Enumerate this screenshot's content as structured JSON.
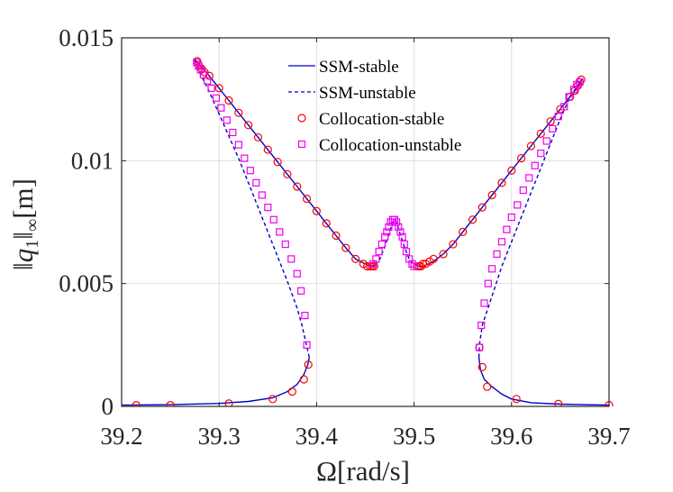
{
  "chart_data": {
    "type": "line",
    "title": "",
    "xlabel": "Ω[rad/s]",
    "ylabel": "‖q₁‖∞[m]",
    "ylabel_parts": {
      "open": "‖",
      "var": "q",
      "sub": "1",
      "close": "‖",
      "sub2": "∞",
      "unit": "[m]"
    },
    "xlim": [
      39.2,
      39.7
    ],
    "ylim": [
      0,
      0.015
    ],
    "xticks": [
      39.2,
      39.3,
      39.4,
      39.5,
      39.6,
      39.7
    ],
    "xtick_labels": [
      "39.2",
      "39.3",
      "39.4",
      "39.5",
      "39.6",
      "39.7"
    ],
    "yticks": [
      0,
      0.005,
      0.01,
      0.015
    ],
    "ytick_labels": [
      "0",
      "0.005",
      "0.01",
      "0.015"
    ],
    "grid": true,
    "legend_position": "top-center",
    "colors": {
      "stable": "#0000cc",
      "unstable": "#0000cc",
      "coll_stable": "#ff0000",
      "coll_unstable": "#ee00ee"
    },
    "series": [
      {
        "name": "SSM-stable",
        "style": "solid",
        "segments": [
          {
            "x": [
              39.2,
              39.25,
              39.3,
              39.33,
              39.355,
              39.37,
              39.38,
              39.387,
              39.391,
              39.3925
            ],
            "y": [
              5e-05,
              7e-05,
              0.00012,
              0.0002,
              0.00035,
              0.0006,
              0.0009,
              0.0013,
              0.0017,
              0.002
            ]
          },
          {
            "x": [
              39.275,
              39.28,
              39.29,
              39.3,
              39.31,
              39.32,
              39.33,
              39.34,
              39.35,
              39.36,
              39.37,
              39.38,
              39.39,
              39.4,
              39.41,
              39.42,
              39.43,
              39.44,
              39.45,
              39.456,
              39.46
            ],
            "y": [
              0.0141,
              0.0139,
              0.01345,
              0.01295,
              0.01245,
              0.01195,
              0.01145,
              0.01095,
              0.01045,
              0.00995,
              0.00945,
              0.00895,
              0.00845,
              0.00795,
              0.00745,
              0.00695,
              0.00645,
              0.006,
              0.0058,
              0.0057,
              0.00575
            ]
          },
          {
            "x": [
              39.5,
              39.505,
              39.51,
              39.52,
              39.53,
              39.54,
              39.55,
              39.56,
              39.57,
              39.58,
              39.59,
              39.6,
              39.61,
              39.62,
              39.63,
              39.64,
              39.65,
              39.66,
              39.67,
              39.672
            ],
            "y": [
              0.0058,
              0.0057,
              0.0057,
              0.0059,
              0.0062,
              0.0066,
              0.0071,
              0.0076,
              0.0081,
              0.0086,
              0.0091,
              0.0096,
              0.0101,
              0.0106,
              0.0111,
              0.0116,
              0.0121,
              0.0126,
              0.0131,
              0.0133
            ]
          },
          {
            "x": [
              39.5665,
              39.568,
              39.572,
              39.58,
              39.59,
              39.6,
              39.62,
              39.65,
              39.7
            ],
            "y": [
              0.002,
              0.0015,
              0.0011,
              0.0008,
              0.0005,
              0.0003,
              0.00015,
              9e-05,
              5e-05
            ]
          }
        ]
      },
      {
        "name": "SSM-unstable",
        "style": "dashed",
        "segments": [
          {
            "x": [
              39.3925,
              39.389,
              39.385,
              39.38,
              39.37,
              39.36,
              39.35,
              39.34,
              39.33,
              39.32,
              39.31,
              39.3,
              39.29,
              39.28,
              39.275
            ],
            "y": [
              0.002,
              0.0026,
              0.0033,
              0.004,
              0.0051,
              0.0061,
              0.0071,
              0.0081,
              0.0091,
              0.0101,
              0.011,
              0.0119,
              0.0128,
              0.0136,
              0.0141
            ]
          },
          {
            "x": [
              39.46,
              39.465,
              39.47,
              39.475,
              39.478,
              39.48,
              39.482,
              39.485,
              39.49,
              39.495,
              39.5
            ],
            "y": [
              0.00575,
              0.006,
              0.0065,
              0.0071,
              0.0075,
              0.0076,
              0.0075,
              0.0071,
              0.0065,
              0.006,
              0.0058
            ]
          },
          {
            "x": [
              39.5665,
              39.567,
              39.57,
              39.58,
              39.59,
              39.6,
              39.61,
              39.62,
              39.63,
              39.64,
              39.65,
              39.66,
              39.672
            ],
            "y": [
              0.002,
              0.0025,
              0.0033,
              0.0045,
              0.0057,
              0.0067,
              0.0077,
              0.0087,
              0.0097,
              0.0107,
              0.0117,
              0.0126,
              0.0133
            ]
          }
        ]
      },
      {
        "name": "Collocation-stable",
        "marker": "circle",
        "x": [
          39.215,
          39.25,
          39.31,
          39.355,
          39.375,
          39.387,
          39.3915,
          39.2775,
          39.279,
          39.282,
          39.285,
          39.29,
          39.3,
          39.31,
          39.32,
          39.33,
          39.34,
          39.35,
          39.36,
          39.37,
          39.38,
          39.39,
          39.4,
          39.41,
          39.42,
          39.43,
          39.44,
          39.448,
          39.452,
          39.455,
          39.457,
          39.459,
          39.503,
          39.505,
          39.507,
          39.509,
          39.512,
          39.516,
          39.52,
          39.53,
          39.54,
          39.55,
          39.56,
          39.57,
          39.58,
          39.59,
          39.6,
          39.61,
          39.62,
          39.63,
          39.64,
          39.65,
          39.66,
          39.665,
          39.668,
          39.67,
          39.6715,
          39.567,
          39.57,
          39.575,
          39.605,
          39.648,
          39.7
        ],
        "y": [
          5e-05,
          5e-05,
          0.00012,
          0.0003,
          0.0006,
          0.0011,
          0.0017,
          0.01405,
          0.0139,
          0.01375,
          0.0136,
          0.01345,
          0.01295,
          0.01245,
          0.01195,
          0.01145,
          0.01095,
          0.01045,
          0.00995,
          0.00945,
          0.00895,
          0.00845,
          0.00795,
          0.00745,
          0.00695,
          0.00645,
          0.006,
          0.0058,
          0.0057,
          0.0057,
          0.0057,
          0.0057,
          0.0057,
          0.0057,
          0.0057,
          0.0058,
          0.0058,
          0.0059,
          0.006,
          0.0062,
          0.0066,
          0.0071,
          0.0076,
          0.0081,
          0.0086,
          0.0091,
          0.0096,
          0.0101,
          0.0106,
          0.0111,
          0.0116,
          0.0121,
          0.0126,
          0.01285,
          0.01305,
          0.0132,
          0.0133,
          0.0024,
          0.0016,
          0.0008,
          0.0003,
          0.0001,
          5e-05
        ]
      },
      {
        "name": "Collocation-unstable",
        "marker": "square",
        "x": [
          39.277,
          39.279,
          39.281,
          39.284,
          39.288,
          39.292,
          39.297,
          39.302,
          39.308,
          39.314,
          39.32,
          39.326,
          39.332,
          39.338,
          39.344,
          39.35,
          39.356,
          39.362,
          39.368,
          39.374,
          39.38,
          39.384,
          39.388,
          39.39,
          39.458,
          39.461,
          39.464,
          39.467,
          39.47,
          39.472,
          39.474,
          39.476,
          39.478,
          39.48,
          39.482,
          39.484,
          39.486,
          39.488,
          39.49,
          39.492,
          39.495,
          39.498,
          39.5,
          39.567,
          39.569,
          39.572,
          39.576,
          39.58,
          39.585,
          39.59,
          39.595,
          39.6,
          39.606,
          39.612,
          39.618,
          39.624,
          39.63,
          39.636,
          39.642,
          39.648,
          39.654,
          39.659,
          39.664,
          39.667,
          39.67
        ],
        "y": [
          0.014,
          0.01385,
          0.0137,
          0.0135,
          0.01325,
          0.01295,
          0.01255,
          0.01215,
          0.01165,
          0.01115,
          0.01065,
          0.0101,
          0.0096,
          0.0091,
          0.0086,
          0.0081,
          0.0076,
          0.0071,
          0.0066,
          0.006,
          0.0054,
          0.0047,
          0.0037,
          0.0025,
          0.0058,
          0.006,
          0.0063,
          0.0066,
          0.0069,
          0.0071,
          0.0073,
          0.0075,
          0.0076,
          0.0076,
          0.0075,
          0.0073,
          0.0071,
          0.0069,
          0.0066,
          0.0063,
          0.006,
          0.0058,
          0.0057,
          0.0024,
          0.0033,
          0.0042,
          0.005,
          0.0056,
          0.0062,
          0.0067,
          0.0072,
          0.0077,
          0.0082,
          0.0088,
          0.0093,
          0.0098,
          0.0103,
          0.0108,
          0.0113,
          0.0118,
          0.0122,
          0.0126,
          0.0129,
          0.0131,
          0.0132
        ]
      }
    ]
  }
}
